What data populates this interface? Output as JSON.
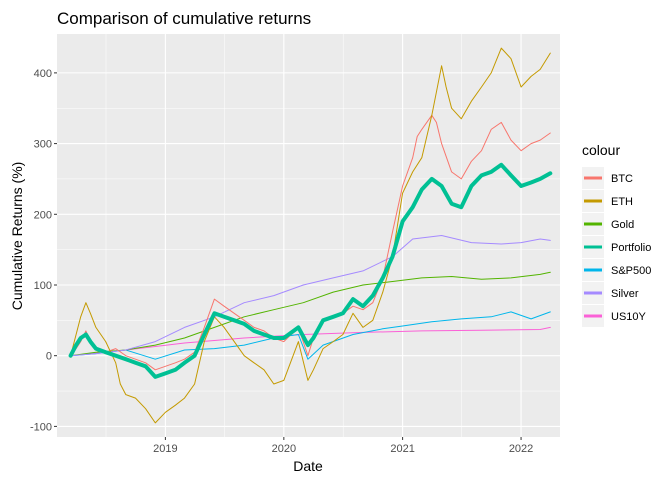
{
  "chart_data": {
    "type": "line",
    "title": "Comparison of cumulative returns",
    "xlabel": "Date",
    "ylabel": "Cumulative Returns (%)",
    "x_ticks": [
      "2019",
      "2020",
      "2021",
      "2022"
    ],
    "y_ticks": [
      -100,
      0,
      100,
      200,
      300,
      400
    ],
    "xlim": [
      "2018-02-01",
      "2022-05-01"
    ],
    "ylim": [
      -115,
      455
    ],
    "grid": true,
    "legend": {
      "title": "colour",
      "position": "right"
    },
    "series": [
      {
        "name": "BTC",
        "color": "#F8766D",
        "values": [
          [
            "2018-03-15",
            0
          ],
          [
            "2018-04-01",
            10
          ],
          [
            "2018-04-15",
            20
          ],
          [
            "2018-05-01",
            35
          ],
          [
            "2018-05-15",
            20
          ],
          [
            "2018-06-01",
            10
          ],
          [
            "2018-07-01",
            5
          ],
          [
            "2018-08-01",
            10
          ],
          [
            "2018-09-01",
            0
          ],
          [
            "2018-10-01",
            -5
          ],
          [
            "2018-11-01",
            -10
          ],
          [
            "2018-12-01",
            -20
          ],
          [
            "2019-01-01",
            -15
          ],
          [
            "2019-02-01",
            -10
          ],
          [
            "2019-03-01",
            -5
          ],
          [
            "2019-04-01",
            5
          ],
          [
            "2019-05-01",
            40
          ],
          [
            "2019-06-01",
            80
          ],
          [
            "2019-07-01",
            70
          ],
          [
            "2019-08-01",
            60
          ],
          [
            "2019-09-01",
            50
          ],
          [
            "2019-10-01",
            40
          ],
          [
            "2019-11-01",
            35
          ],
          [
            "2019-12-01",
            25
          ],
          [
            "2020-01-01",
            20
          ],
          [
            "2020-02-15",
            40
          ],
          [
            "2020-03-15",
            0
          ],
          [
            "2020-04-01",
            25
          ],
          [
            "2020-05-01",
            50
          ],
          [
            "2020-06-01",
            55
          ],
          [
            "2020-07-01",
            60
          ],
          [
            "2020-08-01",
            70
          ],
          [
            "2020-09-01",
            65
          ],
          [
            "2020-10-01",
            75
          ],
          [
            "2020-11-01",
            110
          ],
          [
            "2020-12-01",
            175
          ],
          [
            "2021-01-01",
            240
          ],
          [
            "2021-02-01",
            280
          ],
          [
            "2021-02-15",
            310
          ],
          [
            "2021-03-01",
            320
          ],
          [
            "2021-04-01",
            340
          ],
          [
            "2021-04-15",
            330
          ],
          [
            "2021-05-01",
            300
          ],
          [
            "2021-06-01",
            260
          ],
          [
            "2021-07-01",
            250
          ],
          [
            "2021-08-01",
            275
          ],
          [
            "2021-09-01",
            290
          ],
          [
            "2021-10-01",
            320
          ],
          [
            "2021-11-01",
            330
          ],
          [
            "2021-12-01",
            305
          ],
          [
            "2022-01-01",
            290
          ],
          [
            "2022-02-01",
            300
          ],
          [
            "2022-03-01",
            305
          ],
          [
            "2022-04-01",
            315
          ]
        ]
      },
      {
        "name": "ETH",
        "color": "#C49A00",
        "values": [
          [
            "2018-03-15",
            0
          ],
          [
            "2018-04-01",
            30
          ],
          [
            "2018-04-15",
            55
          ],
          [
            "2018-05-01",
            75
          ],
          [
            "2018-05-15",
            60
          ],
          [
            "2018-06-01",
            40
          ],
          [
            "2018-07-01",
            20
          ],
          [
            "2018-08-01",
            -10
          ],
          [
            "2018-08-15",
            -40
          ],
          [
            "2018-09-01",
            -55
          ],
          [
            "2018-10-01",
            -60
          ],
          [
            "2018-11-01",
            -75
          ],
          [
            "2018-12-01",
            -95
          ],
          [
            "2019-01-01",
            -80
          ],
          [
            "2019-02-01",
            -70
          ],
          [
            "2019-03-01",
            -60
          ],
          [
            "2019-04-01",
            -40
          ],
          [
            "2019-05-01",
            20
          ],
          [
            "2019-06-01",
            55
          ],
          [
            "2019-07-01",
            40
          ],
          [
            "2019-08-01",
            20
          ],
          [
            "2019-09-01",
            0
          ],
          [
            "2019-10-01",
            -10
          ],
          [
            "2019-11-01",
            -20
          ],
          [
            "2019-12-01",
            -40
          ],
          [
            "2020-01-01",
            -35
          ],
          [
            "2020-02-15",
            20
          ],
          [
            "2020-03-15",
            -35
          ],
          [
            "2020-04-01",
            -20
          ],
          [
            "2020-05-01",
            10
          ],
          [
            "2020-06-01",
            20
          ],
          [
            "2020-07-01",
            30
          ],
          [
            "2020-08-01",
            60
          ],
          [
            "2020-09-01",
            40
          ],
          [
            "2020-10-01",
            50
          ],
          [
            "2020-11-01",
            90
          ],
          [
            "2020-12-01",
            140
          ],
          [
            "2021-01-01",
            230
          ],
          [
            "2021-02-01",
            260
          ],
          [
            "2021-03-01",
            280
          ],
          [
            "2021-04-01",
            340
          ],
          [
            "2021-05-01",
            410
          ],
          [
            "2021-05-15",
            380
          ],
          [
            "2021-06-01",
            350
          ],
          [
            "2021-07-01",
            335
          ],
          [
            "2021-08-01",
            360
          ],
          [
            "2021-09-01",
            380
          ],
          [
            "2021-10-01",
            400
          ],
          [
            "2021-11-01",
            435
          ],
          [
            "2021-12-01",
            420
          ],
          [
            "2022-01-01",
            380
          ],
          [
            "2022-02-01",
            395
          ],
          [
            "2022-03-01",
            405
          ],
          [
            "2022-04-01",
            428
          ]
        ]
      },
      {
        "name": "Gold",
        "color": "#53B400",
        "values": [
          [
            "2018-03-15",
            0
          ],
          [
            "2018-06-01",
            5
          ],
          [
            "2018-09-01",
            8
          ],
          [
            "2018-12-01",
            15
          ],
          [
            "2019-03-01",
            25
          ],
          [
            "2019-06-01",
            40
          ],
          [
            "2019-09-01",
            55
          ],
          [
            "2019-12-01",
            65
          ],
          [
            "2020-03-01",
            75
          ],
          [
            "2020-06-01",
            90
          ],
          [
            "2020-09-01",
            100
          ],
          [
            "2020-12-01",
            105
          ],
          [
            "2021-03-01",
            110
          ],
          [
            "2021-06-01",
            112
          ],
          [
            "2021-09-01",
            108
          ],
          [
            "2021-12-01",
            110
          ],
          [
            "2022-03-01",
            115
          ],
          [
            "2022-04-01",
            118
          ]
        ]
      },
      {
        "name": "Portfolio",
        "color": "#00C094",
        "values": [
          [
            "2018-03-15",
            0
          ],
          [
            "2018-04-01",
            15
          ],
          [
            "2018-04-15",
            25
          ],
          [
            "2018-05-01",
            30
          ],
          [
            "2018-05-15",
            20
          ],
          [
            "2018-06-01",
            10
          ],
          [
            "2018-07-01",
            5
          ],
          [
            "2018-08-01",
            0
          ],
          [
            "2018-09-01",
            -5
          ],
          [
            "2018-10-01",
            -10
          ],
          [
            "2018-11-01",
            -15
          ],
          [
            "2018-12-01",
            -30
          ],
          [
            "2019-01-01",
            -25
          ],
          [
            "2019-02-01",
            -20
          ],
          [
            "2019-03-01",
            -10
          ],
          [
            "2019-04-01",
            0
          ],
          [
            "2019-05-01",
            30
          ],
          [
            "2019-06-01",
            60
          ],
          [
            "2019-07-01",
            55
          ],
          [
            "2019-08-01",
            50
          ],
          [
            "2019-09-01",
            45
          ],
          [
            "2019-10-01",
            35
          ],
          [
            "2019-11-01",
            30
          ],
          [
            "2019-12-01",
            25
          ],
          [
            "2020-01-01",
            25
          ],
          [
            "2020-02-15",
            40
          ],
          [
            "2020-03-15",
            15
          ],
          [
            "2020-04-01",
            25
          ],
          [
            "2020-05-01",
            50
          ],
          [
            "2020-06-01",
            55
          ],
          [
            "2020-07-01",
            60
          ],
          [
            "2020-08-01",
            80
          ],
          [
            "2020-09-01",
            70
          ],
          [
            "2020-10-01",
            85
          ],
          [
            "2020-11-01",
            110
          ],
          [
            "2020-12-01",
            140
          ],
          [
            "2021-01-01",
            190
          ],
          [
            "2021-02-01",
            210
          ],
          [
            "2021-03-01",
            235
          ],
          [
            "2021-04-01",
            250
          ],
          [
            "2021-05-01",
            240
          ],
          [
            "2021-06-01",
            215
          ],
          [
            "2021-07-01",
            210
          ],
          [
            "2021-08-01",
            240
          ],
          [
            "2021-09-01",
            255
          ],
          [
            "2021-10-01",
            260
          ],
          [
            "2021-11-01",
            270
          ],
          [
            "2021-12-01",
            255
          ],
          [
            "2022-01-01",
            240
          ],
          [
            "2022-02-01",
            245
          ],
          [
            "2022-03-01",
            250
          ],
          [
            "2022-04-01",
            258
          ]
        ]
      },
      {
        "name": "S&P500",
        "color": "#00B6EB",
        "values": [
          [
            "2018-03-15",
            0
          ],
          [
            "2018-06-01",
            3
          ],
          [
            "2018-09-01",
            8
          ],
          [
            "2018-12-01",
            -5
          ],
          [
            "2019-03-01",
            8
          ],
          [
            "2019-06-01",
            10
          ],
          [
            "2019-09-01",
            15
          ],
          [
            "2019-12-01",
            25
          ],
          [
            "2020-02-15",
            30
          ],
          [
            "2020-03-15",
            -5
          ],
          [
            "2020-05-01",
            15
          ],
          [
            "2020-08-01",
            30
          ],
          [
            "2020-11-01",
            38
          ],
          [
            "2021-01-01",
            42
          ],
          [
            "2021-04-01",
            48
          ],
          [
            "2021-07-01",
            52
          ],
          [
            "2021-10-01",
            55
          ],
          [
            "2021-12-01",
            62
          ],
          [
            "2022-02-01",
            52
          ],
          [
            "2022-04-01",
            62
          ]
        ]
      },
      {
        "name": "Silver",
        "color": "#A58AFF",
        "values": [
          [
            "2018-03-15",
            0
          ],
          [
            "2018-06-01",
            3
          ],
          [
            "2018-09-01",
            8
          ],
          [
            "2018-12-01",
            20
          ],
          [
            "2019-03-01",
            40
          ],
          [
            "2019-06-01",
            55
          ],
          [
            "2019-09-01",
            75
          ],
          [
            "2019-12-01",
            85
          ],
          [
            "2020-03-01",
            100
          ],
          [
            "2020-06-01",
            110
          ],
          [
            "2020-09-01",
            120
          ],
          [
            "2020-12-01",
            140
          ],
          [
            "2021-02-01",
            165
          ],
          [
            "2021-05-01",
            170
          ],
          [
            "2021-08-01",
            160
          ],
          [
            "2021-11-01",
            158
          ],
          [
            "2022-01-01",
            160
          ],
          [
            "2022-03-01",
            165
          ],
          [
            "2022-04-01",
            163
          ]
        ]
      },
      {
        "name": "US10Y",
        "color": "#FB61D7",
        "values": [
          [
            "2018-03-15",
            0
          ],
          [
            "2018-09-01",
            8
          ],
          [
            "2019-03-01",
            18
          ],
          [
            "2019-09-01",
            25
          ],
          [
            "2020-03-01",
            30
          ],
          [
            "2020-09-01",
            33
          ],
          [
            "2021-03-01",
            35
          ],
          [
            "2021-09-01",
            36
          ],
          [
            "2022-03-01",
            37
          ],
          [
            "2022-04-01",
            40
          ]
        ]
      }
    ]
  }
}
